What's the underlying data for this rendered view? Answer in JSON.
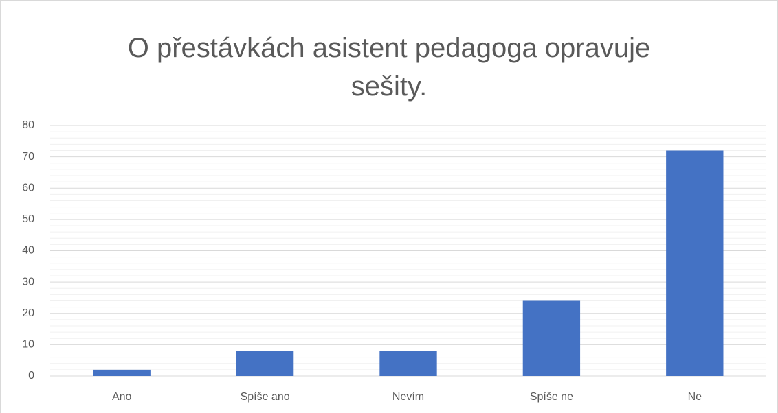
{
  "chart_data": {
    "type": "bar",
    "title": "O přestávkách asistent pedagoga opravuje sešity.",
    "categories": [
      "Ano",
      "Spíše ano",
      "Nevím",
      "Spíše ne",
      "Ne"
    ],
    "values": [
      2,
      8,
      8,
      24,
      72
    ],
    "color": "#4472c4",
    "ylim": [
      0,
      80
    ],
    "yticks": [
      0,
      10,
      20,
      30,
      40,
      50,
      60,
      70,
      80
    ],
    "minor_yticks": [
      2,
      4,
      6,
      8,
      12,
      14,
      16,
      18,
      22,
      24,
      26,
      28,
      32,
      34,
      36,
      38,
      42,
      44,
      46,
      48,
      52,
      54,
      56,
      58,
      62,
      64,
      66,
      68,
      72,
      74,
      76,
      78
    ],
    "grid": true
  }
}
